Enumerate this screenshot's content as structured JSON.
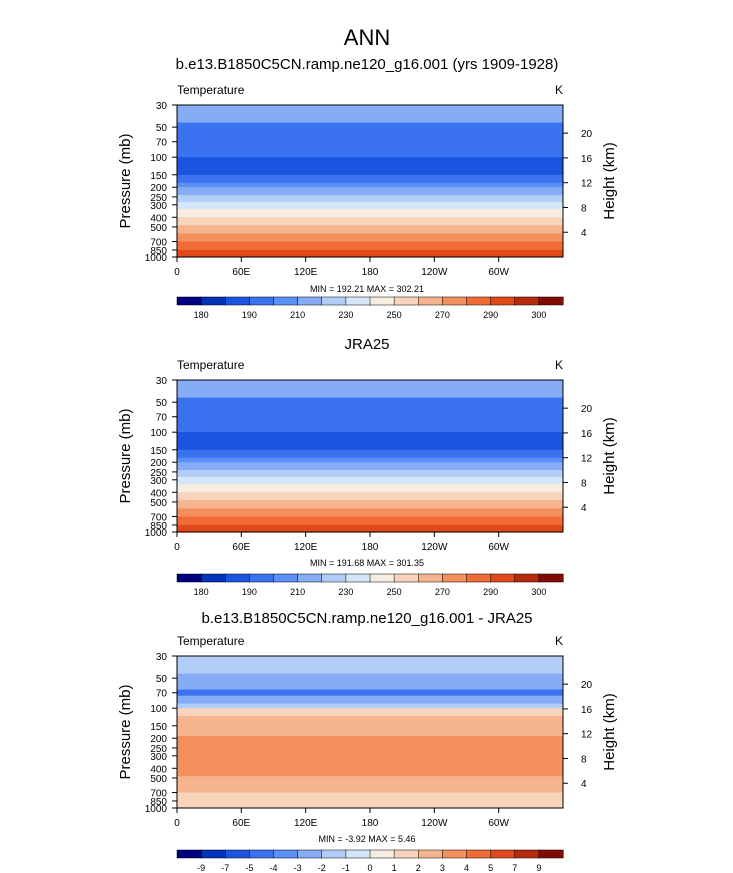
{
  "page_title": "ANN",
  "chart_data": [
    {
      "type": "heatmap",
      "panel_title": "b.e13.B1850C5CN.ramp.ne120_g16.001 (yrs 1909-1928)",
      "variable": "Temperature",
      "units": "K",
      "ylabel": "Pressure (mb)",
      "ylabel_right": "Height (km)",
      "x_ticks": [
        "0",
        "60E",
        "120E",
        "180",
        "120W",
        "60W"
      ],
      "y_ticks": [
        "30",
        "50",
        "70",
        "100",
        "150",
        "200",
        "250",
        "300",
        "400",
        "500",
        "700",
        "850",
        "1000"
      ],
      "height_ticks": [
        "20",
        "16",
        "12",
        "8",
        "4"
      ],
      "stats": "MIN = 192.21  MAX = 302.21",
      "min": 192.21,
      "max": 302.21,
      "colorbar_labels": [
        "180",
        "190",
        "210",
        "230",
        "250",
        "270",
        "290",
        "300"
      ],
      "colorbar_colors": [
        "#000080",
        "#0033b8",
        "#1a55e0",
        "#3a72f0",
        "#5a8ff5",
        "#85acf5",
        "#b2cdf8",
        "#d6e6fa",
        "#f7ece0",
        "#f8d4bc",
        "#f6b48e",
        "#f3905e",
        "#f06c34",
        "#e1481a",
        "#b82a0c",
        "#800b05"
      ],
      "bands": [
        {
          "p": 30,
          "color": "#85acf5"
        },
        {
          "p": 45,
          "color": "#3a72f0"
        },
        {
          "p": 100,
          "color": "#1a55e0"
        },
        {
          "p": 150,
          "color": "#3a72f0"
        },
        {
          "p": 180,
          "color": "#5a8ff5"
        },
        {
          "p": 200,
          "color": "#85acf5"
        },
        {
          "p": 240,
          "color": "#b2cdf8"
        },
        {
          "p": 280,
          "color": "#d6e6fa"
        },
        {
          "p": 330,
          "color": "#f7ece0"
        },
        {
          "p": 400,
          "color": "#f8d4bc"
        },
        {
          "p": 480,
          "color": "#f6b48e"
        },
        {
          "p": 580,
          "color": "#f3905e"
        },
        {
          "p": 700,
          "color": "#f06c34"
        },
        {
          "p": 850,
          "color": "#e1481a"
        },
        {
          "p": 1000,
          "color": "#e1481a"
        }
      ]
    },
    {
      "type": "heatmap",
      "panel_title": "JRA25",
      "variable": "Temperature",
      "units": "K",
      "ylabel": "Pressure (mb)",
      "ylabel_right": "Height (km)",
      "x_ticks": [
        "0",
        "60E",
        "120E",
        "180",
        "120W",
        "60W"
      ],
      "y_ticks": [
        "30",
        "50",
        "70",
        "100",
        "150",
        "200",
        "250",
        "300",
        "400",
        "500",
        "700",
        "850",
        "1000"
      ],
      "height_ticks": [
        "20",
        "16",
        "12",
        "8",
        "4"
      ],
      "stats": "MIN = 191.68  MAX = 301.35",
      "min": 191.68,
      "max": 301.35,
      "colorbar_labels": [
        "180",
        "190",
        "210",
        "230",
        "250",
        "270",
        "290",
        "300"
      ],
      "colorbar_colors": [
        "#000080",
        "#0033b8",
        "#1a55e0",
        "#3a72f0",
        "#5a8ff5",
        "#85acf5",
        "#b2cdf8",
        "#d6e6fa",
        "#f7ece0",
        "#f8d4bc",
        "#f6b48e",
        "#f3905e",
        "#f06c34",
        "#e1481a",
        "#b82a0c",
        "#800b05"
      ],
      "bands": [
        {
          "p": 30,
          "color": "#85acf5"
        },
        {
          "p": 45,
          "color": "#3a72f0"
        },
        {
          "p": 100,
          "color": "#1a55e0"
        },
        {
          "p": 150,
          "color": "#3a72f0"
        },
        {
          "p": 180,
          "color": "#5a8ff5"
        },
        {
          "p": 200,
          "color": "#85acf5"
        },
        {
          "p": 240,
          "color": "#b2cdf8"
        },
        {
          "p": 280,
          "color": "#d6e6fa"
        },
        {
          "p": 330,
          "color": "#f7ece0"
        },
        {
          "p": 400,
          "color": "#f8d4bc"
        },
        {
          "p": 480,
          "color": "#f6b48e"
        },
        {
          "p": 580,
          "color": "#f3905e"
        },
        {
          "p": 700,
          "color": "#f06c34"
        },
        {
          "p": 850,
          "color": "#e1481a"
        },
        {
          "p": 1000,
          "color": "#e1481a"
        }
      ]
    },
    {
      "type": "heatmap",
      "panel_title": "b.e13.B1850C5CN.ramp.ne120_g16.001 - JRA25",
      "variable": "Temperature",
      "units": "K",
      "ylabel": "Pressure (mb)",
      "ylabel_right": "Height (km)",
      "x_ticks": [
        "0",
        "60E",
        "120E",
        "180",
        "120W",
        "60W"
      ],
      "y_ticks": [
        "30",
        "50",
        "70",
        "100",
        "150",
        "200",
        "250",
        "300",
        "400",
        "500",
        "700",
        "850",
        "1000"
      ],
      "height_ticks": [
        "20",
        "16",
        "12",
        "8",
        "4"
      ],
      "stats": "MIN = -3.92  MAX =  5.46",
      "min": -3.92,
      "max": 5.46,
      "colorbar_labels": [
        "-9",
        "-7",
        "-5",
        "-4",
        "-3",
        "-2",
        "-1",
        "0",
        "1",
        "2",
        "3",
        "4",
        "5",
        "7",
        "9"
      ],
      "colorbar_colors": [
        "#000080",
        "#0033b8",
        "#1a55e0",
        "#3a72f0",
        "#5a8ff5",
        "#85acf5",
        "#b2cdf8",
        "#d6e6fa",
        "#f7ece0",
        "#f8d4bc",
        "#f6b48e",
        "#f3905e",
        "#f06c34",
        "#e1481a",
        "#b82a0c",
        "#800b05"
      ],
      "bands": [
        {
          "p": 30,
          "color": "#b2cdf8"
        },
        {
          "p": 45,
          "color": "#85acf5"
        },
        {
          "p": 65,
          "color": "#3a72f0"
        },
        {
          "p": 75,
          "color": "#85acf5"
        },
        {
          "p": 90,
          "color": "#b2cdf8"
        },
        {
          "p": 100,
          "color": "#f8d4bc"
        },
        {
          "p": 120,
          "color": "#f6b48e"
        },
        {
          "p": 190,
          "color": "#f3905e"
        },
        {
          "p": 480,
          "color": "#f6b48e"
        },
        {
          "p": 700,
          "color": "#f8d4bc"
        },
        {
          "p": 1000,
          "color": "#f8d4bc"
        }
      ]
    }
  ]
}
